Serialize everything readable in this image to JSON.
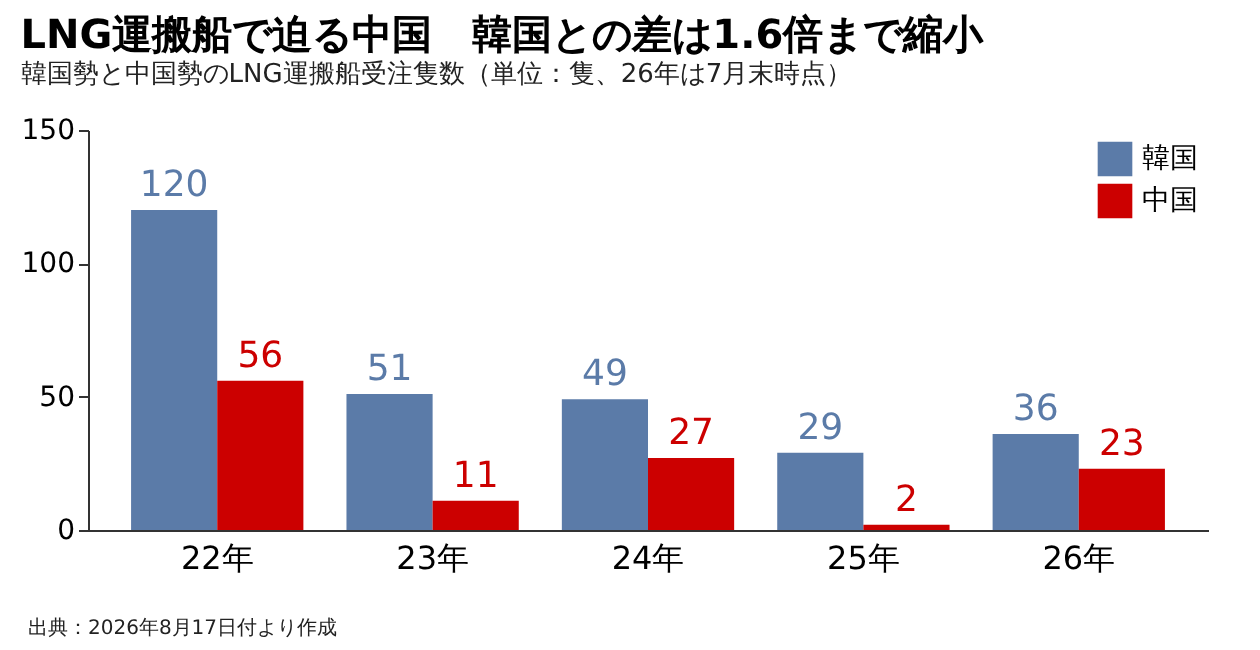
{
  "chart_data": {
    "type": "bar",
    "title": "LNG運搬船で迫る中国　韓国との差は1.6倍まで縮小",
    "subtitle": "韓国勢と中国勢のLNG運搬船受注隻数（単位：隻、26年は7月末時点）",
    "categories": [
      "22年",
      "23年",
      "24年",
      "25年",
      "26年"
    ],
    "series": [
      {
        "name": "韓国",
        "color": "#5b7ba8",
        "values": [
          120,
          51,
          49,
          29,
          36
        ]
      },
      {
        "name": "中国",
        "color": "#cc0000",
        "values": [
          56,
          11,
          27,
          2,
          23
        ]
      }
    ],
    "ylim": [
      0,
      150
    ],
    "yticks": [
      0,
      50,
      100,
      150
    ],
    "grid": false,
    "legend": "top right",
    "data_labels": true,
    "annotations": [
      "出典：2026年8月17日付より作成"
    ]
  }
}
